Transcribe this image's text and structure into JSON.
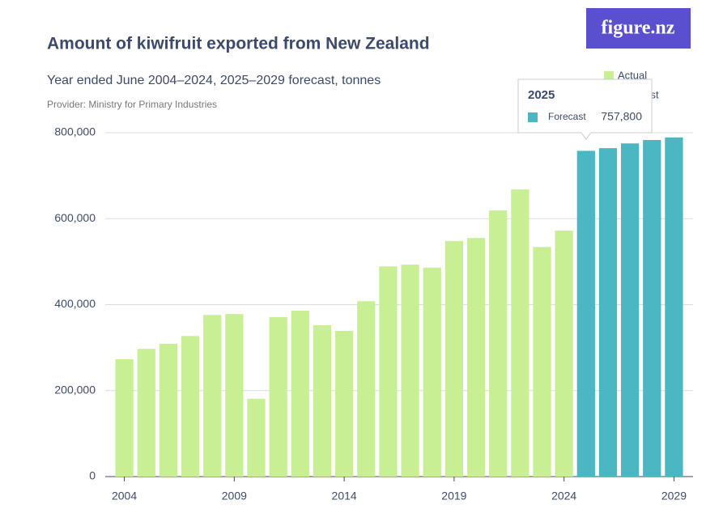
{
  "logo": "figure.nz",
  "chart_data": {
    "type": "bar",
    "title": "Amount of kiwifruit exported from New Zealand",
    "subtitle": "Year ended June 2004–2024, 2025–2029 forecast, tonnes",
    "source": "Provider: Ministry for Primary Industries",
    "categories": [
      "2004",
      null,
      null,
      null,
      null,
      "2009",
      null,
      null,
      null,
      null,
      "2014",
      null,
      null,
      null,
      null,
      "2019",
      null,
      null,
      null,
      null,
      "2024",
      null,
      null,
      null,
      null,
      "2029"
    ],
    "series": [
      {
        "name": "Actual",
        "color": "#c9ef95",
        "values": [
          273000,
          297000,
          309000,
          327000,
          376000,
          378000,
          181000,
          371000,
          386000,
          352000,
          339000,
          408000,
          489000,
          493000,
          486000,
          548000,
          555000,
          619000,
          668000,
          534000,
          572000,
          null,
          null,
          null,
          null,
          null
        ]
      },
      {
        "name": "Forecast",
        "color": "#4ab7c3",
        "values": [
          null,
          null,
          null,
          null,
          null,
          null,
          null,
          null,
          null,
          null,
          null,
          null,
          null,
          null,
          null,
          null,
          null,
          null,
          null,
          null,
          null,
          757800,
          764000,
          775000,
          783000,
          789000
        ]
      }
    ],
    "ylim": [
      0,
      800000
    ],
    "yticks": [
      0,
      {
        "value": 200000,
        "label": "200,000"
      },
      {
        "value": 400000,
        "label": "400,000"
      },
      {
        "value": 600000,
        "label": "600,000"
      },
      {
        "value": 800000,
        "label": "800,000"
      }
    ],
    "grid": true,
    "legend": "top-right",
    "tooltip": {
      "title": "2025",
      "value_label": "757,800"
    }
  }
}
